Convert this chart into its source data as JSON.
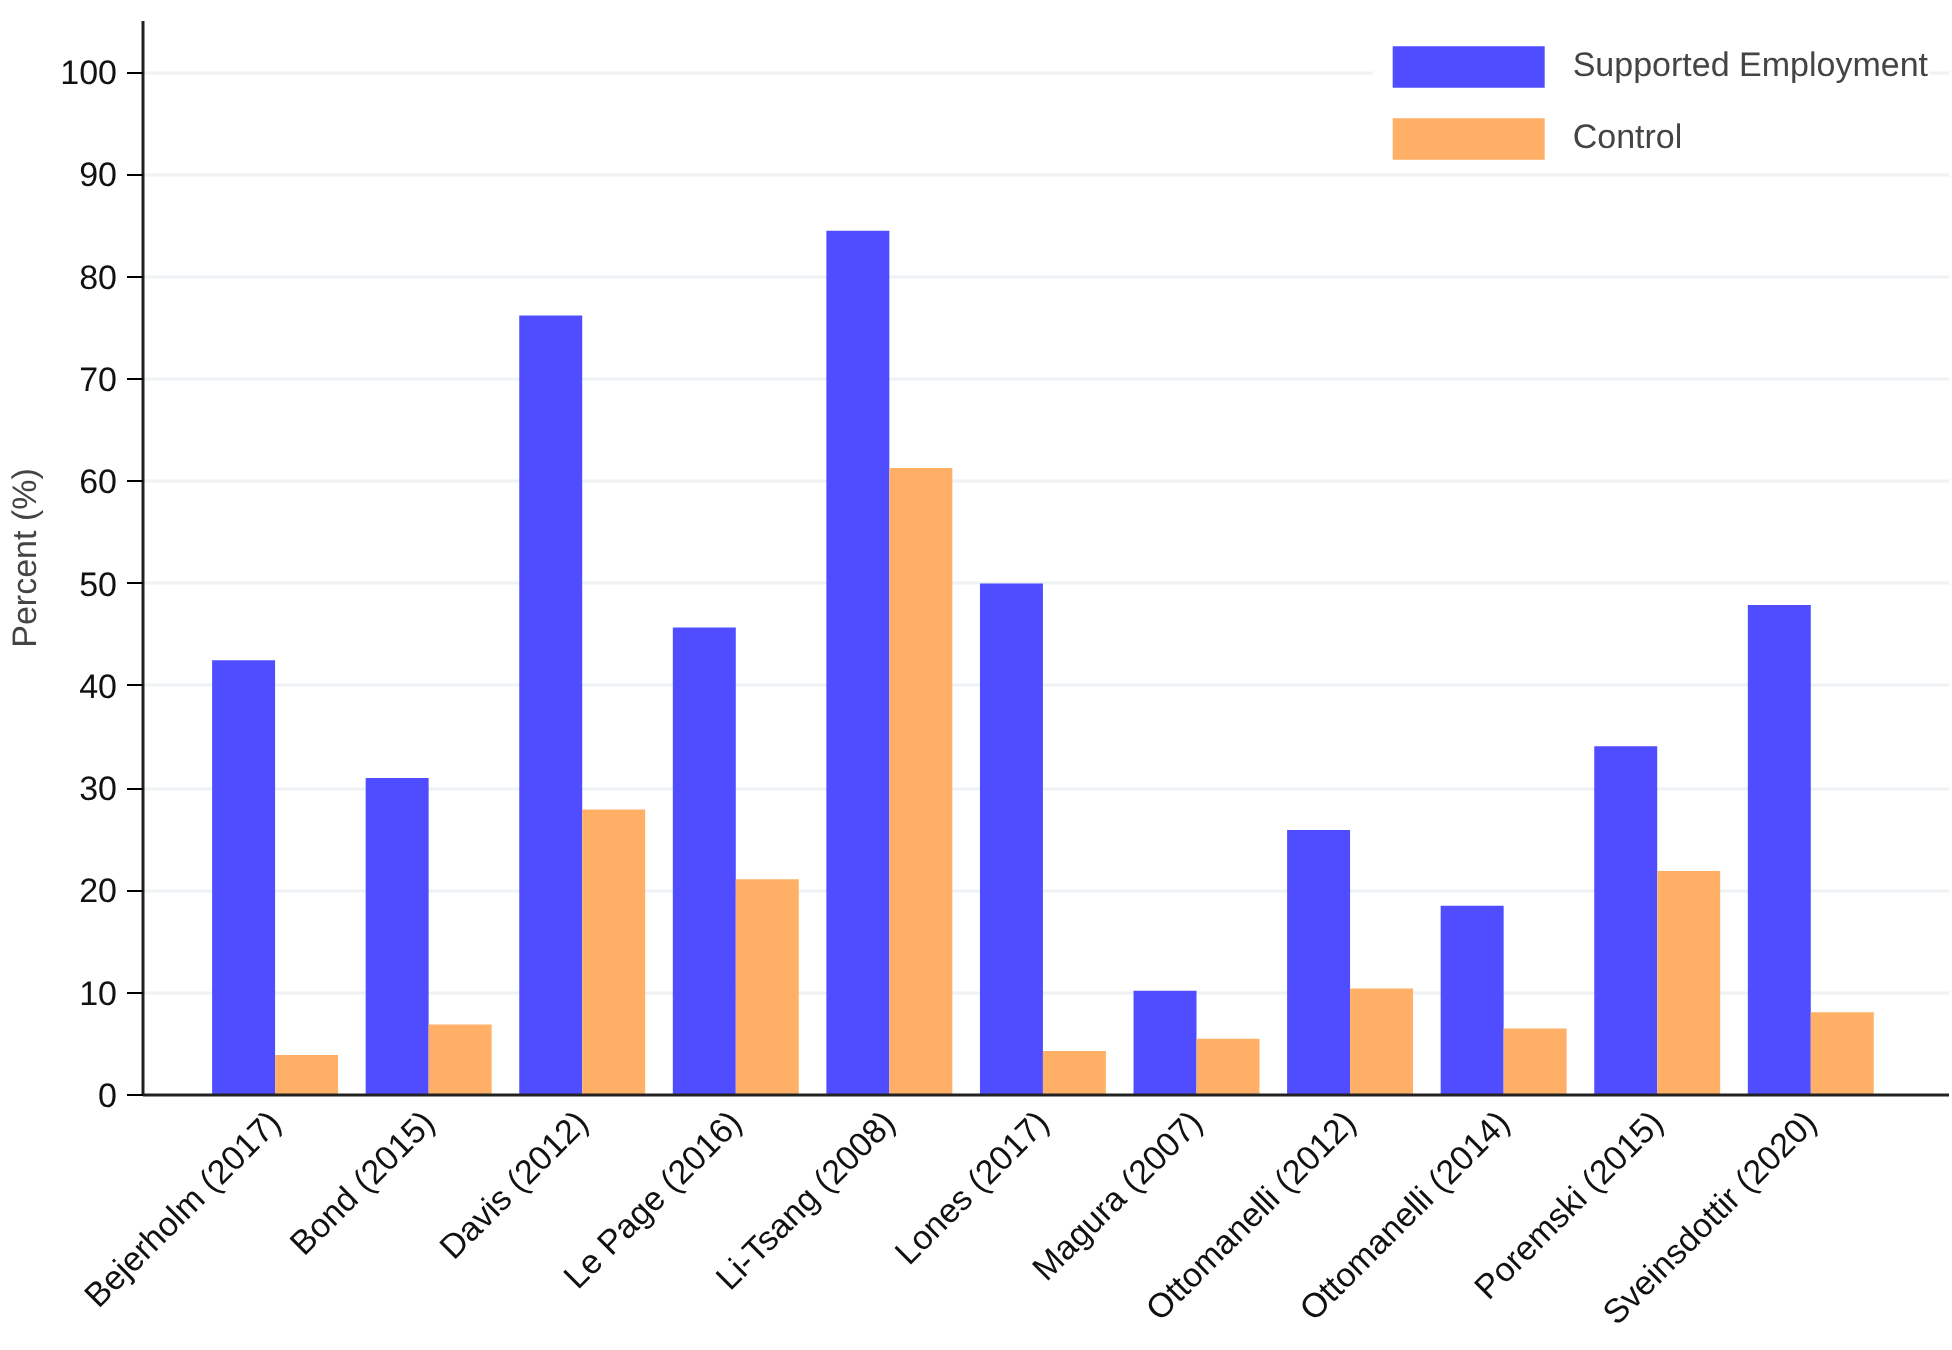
{
  "chart_data": {
    "type": "bar",
    "ylabel": "Percent (%)",
    "categories": [
      "Bejerholm (2017)",
      "Bond (2015)",
      "Davis (2012)",
      "Le Page (2016)",
      "Li-Tsang (2008)",
      "Lones (2017)",
      "Magura (2007)",
      "Ottomanelli (2012)",
      "Ottomanelli (2014)",
      "Poremski (2015)",
      "Sveinsdottir (2020)"
    ],
    "series": [
      {
        "name": "Supported Employment",
        "color": "#4f4dff",
        "values": [
          42.5,
          31.0,
          76.2,
          45.7,
          84.5,
          50.0,
          10.2,
          25.9,
          18.5,
          34.1,
          47.9
        ]
      },
      {
        "name": "Control",
        "color": "#ffb066",
        "values": [
          3.9,
          6.9,
          27.9,
          21.1,
          61.3,
          4.3,
          5.5,
          10.4,
          6.5,
          21.9,
          8.1
        ]
      }
    ],
    "ylim": [
      0,
      105
    ],
    "yticks": [
      0,
      10,
      20,
      30,
      40,
      50,
      60,
      70,
      80,
      90,
      100
    ],
    "grid": "y",
    "legend": "top right"
  }
}
